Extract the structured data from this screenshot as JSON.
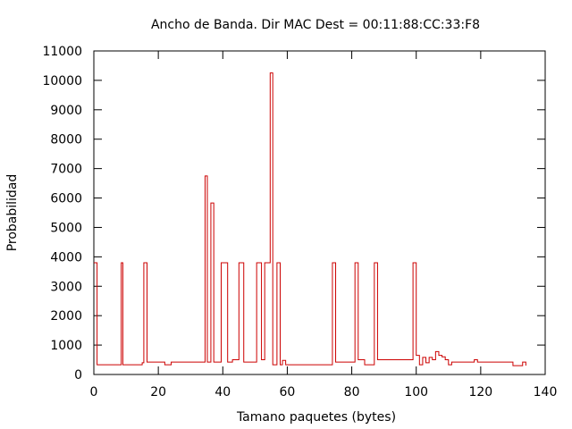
{
  "chart_data": {
    "type": "line",
    "title": "Ancho de Banda. Dir MAC Dest = 00:11:88:CC:33:F8",
    "xlabel": "Tamano paquetes (bytes)",
    "ylabel": "Probabilidad",
    "xlim": [
      0,
      140
    ],
    "ylim": [
      0,
      11000
    ],
    "xticks": [
      0,
      20,
      40,
      60,
      80,
      100,
      120,
      140
    ],
    "yticks": [
      0,
      1000,
      2000,
      3000,
      4000,
      5000,
      6000,
      7000,
      8000,
      9000,
      10000,
      11000
    ],
    "grid": false,
    "legend": "none",
    "line_color": "#cc0000",
    "series": [
      {
        "x": [
          0,
          1,
          8.5,
          9,
          14,
          15,
          15.5,
          16.5,
          22,
          24,
          34.5,
          35.2,
          36.3,
          37.2,
          39.5,
          41.5,
          43,
          45,
          46.5,
          50.5,
          52,
          53,
          54.7,
          55.5,
          56.8,
          57.8,
          58.5,
          59.5,
          74,
          75,
          81,
          82,
          84,
          87,
          88,
          99,
          100,
          101,
          102,
          103,
          104,
          105,
          106,
          107,
          108,
          109,
          110,
          111,
          118,
          119,
          129,
          130,
          133,
          134
        ],
        "y": [
          3800,
          330,
          3800,
          330,
          330,
          400,
          3800,
          420,
          330,
          420,
          6750,
          420,
          5830,
          420,
          3800,
          420,
          500,
          3800,
          420,
          3800,
          500,
          3800,
          10250,
          330,
          3800,
          330,
          480,
          330,
          3800,
          420,
          3800,
          500,
          330,
          3800,
          500,
          3800,
          650,
          330,
          580,
          400,
          580,
          500,
          780,
          650,
          600,
          500,
          330,
          420,
          500,
          420,
          420,
          300,
          420,
          300
        ]
      }
    ]
  }
}
